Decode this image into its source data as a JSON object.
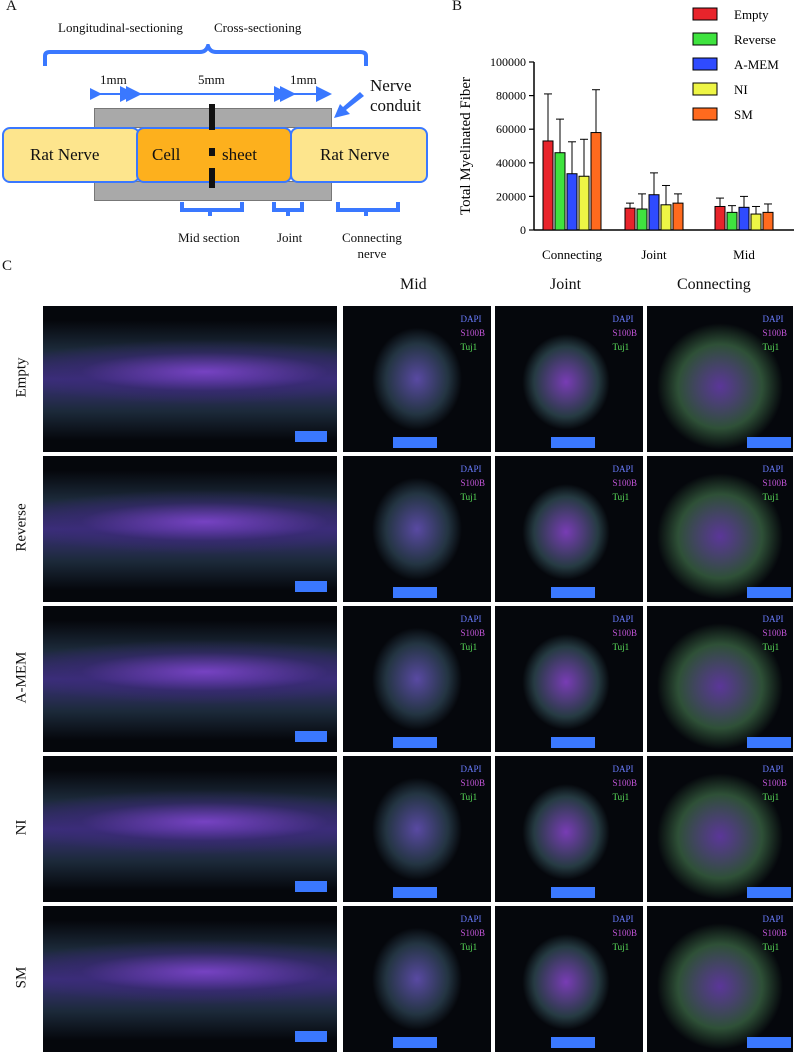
{
  "panels": {
    "a": "A",
    "b": "B",
    "c": "C"
  },
  "diagram": {
    "longitudinal": "Longitudinal-sectioning",
    "cross": "Cross-sectioning",
    "len_1": "1mm",
    "len_5": "5mm",
    "len_2": "1mm",
    "conduit_line1": "Nerve",
    "conduit_line2": "conduit",
    "rat_left": "Rat Nerve",
    "cell": "Cell",
    "sheet": "sheet",
    "rat_right": "Rat Nerve",
    "mid_section": "Mid section",
    "joint": "Joint",
    "connecting_line1": "Connecting",
    "connecting_line2": "nerve"
  },
  "chart_data": {
    "type": "bar",
    "title": "",
    "ylabel": "Total Myelinated Fiber",
    "xlabel": "",
    "ylim": [
      0,
      100000
    ],
    "yticks": [
      "0",
      "20000",
      "40000",
      "60000",
      "80000",
      "100000"
    ],
    "ytick_values": [
      0,
      20000,
      40000,
      60000,
      80000,
      100000
    ],
    "categories": [
      "Connecting",
      "Joint",
      "Mid"
    ],
    "legend_position": "top-right",
    "series": [
      {
        "name": "Empty",
        "color": "#e8242b",
        "values": [
          53000,
          13000,
          14000
        ],
        "errors": [
          28000,
          3000,
          5000
        ]
      },
      {
        "name": "Reverse",
        "color": "#3fe33f",
        "values": [
          46000,
          12500,
          10500
        ],
        "errors": [
          20000,
          9000,
          4000
        ]
      },
      {
        "name": "A-MEM",
        "color": "#2f4bff",
        "values": [
          33500,
          21000,
          13500
        ],
        "errors": [
          19000,
          13000,
          6500
        ]
      },
      {
        "name": "NI",
        "color": "#eef545",
        "values": [
          32000,
          15000,
          9500
        ],
        "errors": [
          22000,
          11500,
          4500
        ]
      },
      {
        "name": "SM",
        "color": "#ff6a1e",
        "values": [
          58000,
          16000,
          10500
        ],
        "errors": [
          25500,
          5500,
          5000
        ]
      }
    ]
  },
  "grid": {
    "column_headers": [
      "Mid",
      "Joint",
      "Connecting"
    ],
    "row_labels": [
      "Empty",
      "Reverse",
      "A-MEM",
      "NI",
      "SM"
    ],
    "stain_labels": [
      "DAPI",
      "S100B",
      "Tuj1"
    ]
  }
}
